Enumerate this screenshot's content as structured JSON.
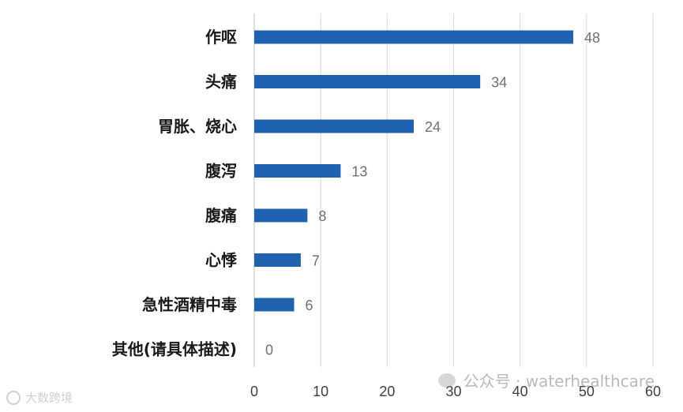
{
  "chart_data": {
    "type": "bar",
    "orientation": "horizontal",
    "categories": [
      "作呕",
      "头痛",
      "胃胀、烧心",
      "腹泻",
      "腹痛",
      "心悸",
      "急性酒精中毒",
      "其他(请具体描述)"
    ],
    "values": [
      48,
      34,
      24,
      13,
      8,
      7,
      6,
      0
    ],
    "xlim": [
      0,
      60
    ],
    "xticks": [
      0,
      10,
      20,
      30,
      40,
      50,
      60
    ],
    "title": "",
    "xlabel": "",
    "ylabel": "",
    "grid": "vertical",
    "bar_color": "#1f63b0"
  },
  "watermarks": {
    "right_text": "公众号 · waterhealthcare",
    "left_text": "大数跨境",
    "right_icon": "wechat-icon",
    "left_icon": "logo-icon"
  }
}
